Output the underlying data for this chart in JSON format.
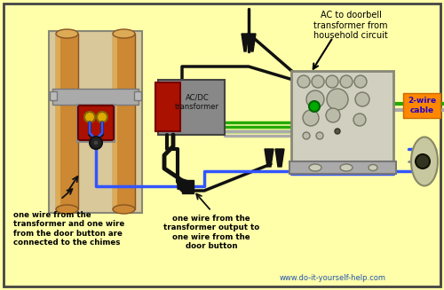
{
  "bg_color": "#FFFFAA",
  "title_text": "AC to doorbell\ntransformer from\nhousehold circuit",
  "label_chimes": "one wire from the\ntransformer and one wire\nfrom the door button are\nconnected to the chimes",
  "label_button": "one wire from the\ntransformer output to\none wire from the\ndoor button",
  "label_cable": "2-wire\ncable",
  "footer": "www.do-it-yourself-help.com",
  "wire_blue": "#3355FF",
  "wire_green": "#22AA00",
  "wire_black": "#111111",
  "wire_gray": "#AAAAAA",
  "cable_label_bg": "#FF8800",
  "cable_label_fg": "#2200CC",
  "chimes_bg": "#D8C89A",
  "transformer_gray": "#888888",
  "transformer_red": "#AA1100",
  "box_face": "#CCCCBB",
  "box_edge": "#666655",
  "pipe_color": "#CC8833",
  "pipe_light": "#DDAA55",
  "pipe_dark": "#885522"
}
